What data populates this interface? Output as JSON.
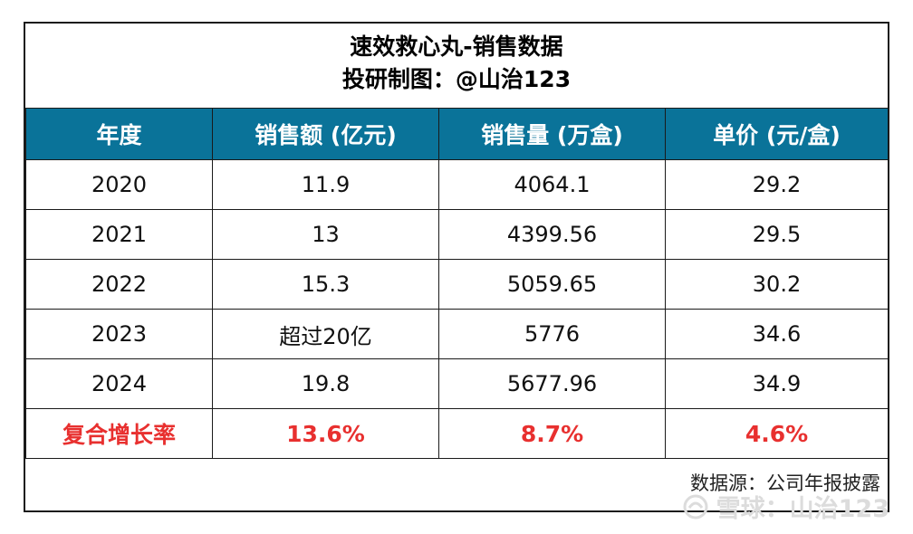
{
  "title": {
    "line1": "速效救心丸-销售数据",
    "line2": "投研制图：@山治123"
  },
  "table": {
    "headers": [
      "年度",
      "销售额 (亿元)",
      "销售量 (万盒)",
      "单价 (元/盒)"
    ],
    "rows": [
      [
        "2020",
        "11.9",
        "4064.1",
        "29.2"
      ],
      [
        "2021",
        "13",
        "4399.56",
        "29.5"
      ],
      [
        "2022",
        "15.3",
        "5059.65",
        "30.2"
      ],
      [
        "2023",
        "超过20亿",
        "5776",
        "34.6"
      ],
      [
        "2024",
        "19.8",
        "5677.96",
        "34.9"
      ]
    ],
    "growth": [
      "复合增长率",
      "13.6%",
      "8.7%",
      "4.6%"
    ]
  },
  "source": "数据源：公司年报披露",
  "watermark": "雪球：山治123",
  "colors": {
    "header_bg": "#0a7399",
    "growth_text": "#e8302f",
    "watermark": "#dcdcdc"
  }
}
